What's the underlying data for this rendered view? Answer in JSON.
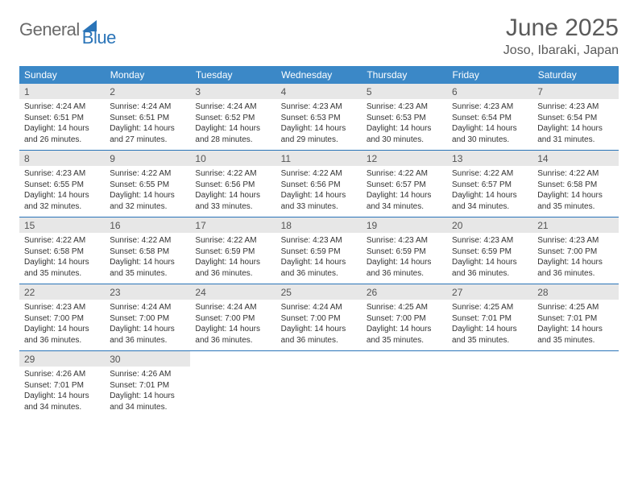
{
  "colors": {
    "header_bg": "#3b88c7",
    "header_text": "#ffffff",
    "daynum_bg": "#e7e7e7",
    "daynum_text": "#555555",
    "body_text": "#333333",
    "rule": "#2a74b8",
    "logo_gray": "#6a6a6a",
    "logo_blue": "#2a74b8",
    "title_color": "#5a5a5a"
  },
  "fontsizes": {
    "title_month": 30,
    "title_loc": 16,
    "weekday": 12,
    "daynum": 12,
    "body": 10
  },
  "logo": {
    "part1": "General",
    "part2": "Blue"
  },
  "title": {
    "month": "June 2025",
    "location": "Joso, Ibaraki, Japan"
  },
  "weekdays": [
    "Sunday",
    "Monday",
    "Tuesday",
    "Wednesday",
    "Thursday",
    "Friday",
    "Saturday"
  ],
  "weeks": [
    [
      {
        "n": "1",
        "sr": "Sunrise: 4:24 AM",
        "ss": "Sunset: 6:51 PM",
        "d1": "Daylight: 14 hours",
        "d2": "and 26 minutes."
      },
      {
        "n": "2",
        "sr": "Sunrise: 4:24 AM",
        "ss": "Sunset: 6:51 PM",
        "d1": "Daylight: 14 hours",
        "d2": "and 27 minutes."
      },
      {
        "n": "3",
        "sr": "Sunrise: 4:24 AM",
        "ss": "Sunset: 6:52 PM",
        "d1": "Daylight: 14 hours",
        "d2": "and 28 minutes."
      },
      {
        "n": "4",
        "sr": "Sunrise: 4:23 AM",
        "ss": "Sunset: 6:53 PM",
        "d1": "Daylight: 14 hours",
        "d2": "and 29 minutes."
      },
      {
        "n": "5",
        "sr": "Sunrise: 4:23 AM",
        "ss": "Sunset: 6:53 PM",
        "d1": "Daylight: 14 hours",
        "d2": "and 30 minutes."
      },
      {
        "n": "6",
        "sr": "Sunrise: 4:23 AM",
        "ss": "Sunset: 6:54 PM",
        "d1": "Daylight: 14 hours",
        "d2": "and 30 minutes."
      },
      {
        "n": "7",
        "sr": "Sunrise: 4:23 AM",
        "ss": "Sunset: 6:54 PM",
        "d1": "Daylight: 14 hours",
        "d2": "and 31 minutes."
      }
    ],
    [
      {
        "n": "8",
        "sr": "Sunrise: 4:23 AM",
        "ss": "Sunset: 6:55 PM",
        "d1": "Daylight: 14 hours",
        "d2": "and 32 minutes."
      },
      {
        "n": "9",
        "sr": "Sunrise: 4:22 AM",
        "ss": "Sunset: 6:55 PM",
        "d1": "Daylight: 14 hours",
        "d2": "and 32 minutes."
      },
      {
        "n": "10",
        "sr": "Sunrise: 4:22 AM",
        "ss": "Sunset: 6:56 PM",
        "d1": "Daylight: 14 hours",
        "d2": "and 33 minutes."
      },
      {
        "n": "11",
        "sr": "Sunrise: 4:22 AM",
        "ss": "Sunset: 6:56 PM",
        "d1": "Daylight: 14 hours",
        "d2": "and 33 minutes."
      },
      {
        "n": "12",
        "sr": "Sunrise: 4:22 AM",
        "ss": "Sunset: 6:57 PM",
        "d1": "Daylight: 14 hours",
        "d2": "and 34 minutes."
      },
      {
        "n": "13",
        "sr": "Sunrise: 4:22 AM",
        "ss": "Sunset: 6:57 PM",
        "d1": "Daylight: 14 hours",
        "d2": "and 34 minutes."
      },
      {
        "n": "14",
        "sr": "Sunrise: 4:22 AM",
        "ss": "Sunset: 6:58 PM",
        "d1": "Daylight: 14 hours",
        "d2": "and 35 minutes."
      }
    ],
    [
      {
        "n": "15",
        "sr": "Sunrise: 4:22 AM",
        "ss": "Sunset: 6:58 PM",
        "d1": "Daylight: 14 hours",
        "d2": "and 35 minutes."
      },
      {
        "n": "16",
        "sr": "Sunrise: 4:22 AM",
        "ss": "Sunset: 6:58 PM",
        "d1": "Daylight: 14 hours",
        "d2": "and 35 minutes."
      },
      {
        "n": "17",
        "sr": "Sunrise: 4:22 AM",
        "ss": "Sunset: 6:59 PM",
        "d1": "Daylight: 14 hours",
        "d2": "and 36 minutes."
      },
      {
        "n": "18",
        "sr": "Sunrise: 4:23 AM",
        "ss": "Sunset: 6:59 PM",
        "d1": "Daylight: 14 hours",
        "d2": "and 36 minutes."
      },
      {
        "n": "19",
        "sr": "Sunrise: 4:23 AM",
        "ss": "Sunset: 6:59 PM",
        "d1": "Daylight: 14 hours",
        "d2": "and 36 minutes."
      },
      {
        "n": "20",
        "sr": "Sunrise: 4:23 AM",
        "ss": "Sunset: 6:59 PM",
        "d1": "Daylight: 14 hours",
        "d2": "and 36 minutes."
      },
      {
        "n": "21",
        "sr": "Sunrise: 4:23 AM",
        "ss": "Sunset: 7:00 PM",
        "d1": "Daylight: 14 hours",
        "d2": "and 36 minutes."
      }
    ],
    [
      {
        "n": "22",
        "sr": "Sunrise: 4:23 AM",
        "ss": "Sunset: 7:00 PM",
        "d1": "Daylight: 14 hours",
        "d2": "and 36 minutes."
      },
      {
        "n": "23",
        "sr": "Sunrise: 4:24 AM",
        "ss": "Sunset: 7:00 PM",
        "d1": "Daylight: 14 hours",
        "d2": "and 36 minutes."
      },
      {
        "n": "24",
        "sr": "Sunrise: 4:24 AM",
        "ss": "Sunset: 7:00 PM",
        "d1": "Daylight: 14 hours",
        "d2": "and 36 minutes."
      },
      {
        "n": "25",
        "sr": "Sunrise: 4:24 AM",
        "ss": "Sunset: 7:00 PM",
        "d1": "Daylight: 14 hours",
        "d2": "and 36 minutes."
      },
      {
        "n": "26",
        "sr": "Sunrise: 4:25 AM",
        "ss": "Sunset: 7:00 PM",
        "d1": "Daylight: 14 hours",
        "d2": "and 35 minutes."
      },
      {
        "n": "27",
        "sr": "Sunrise: 4:25 AM",
        "ss": "Sunset: 7:01 PM",
        "d1": "Daylight: 14 hours",
        "d2": "and 35 minutes."
      },
      {
        "n": "28",
        "sr": "Sunrise: 4:25 AM",
        "ss": "Sunset: 7:01 PM",
        "d1": "Daylight: 14 hours",
        "d2": "and 35 minutes."
      }
    ],
    [
      {
        "n": "29",
        "sr": "Sunrise: 4:26 AM",
        "ss": "Sunset: 7:01 PM",
        "d1": "Daylight: 14 hours",
        "d2": "and 34 minutes."
      },
      {
        "n": "30",
        "sr": "Sunrise: 4:26 AM",
        "ss": "Sunset: 7:01 PM",
        "d1": "Daylight: 14 hours",
        "d2": "and 34 minutes."
      },
      null,
      null,
      null,
      null,
      null
    ]
  ]
}
